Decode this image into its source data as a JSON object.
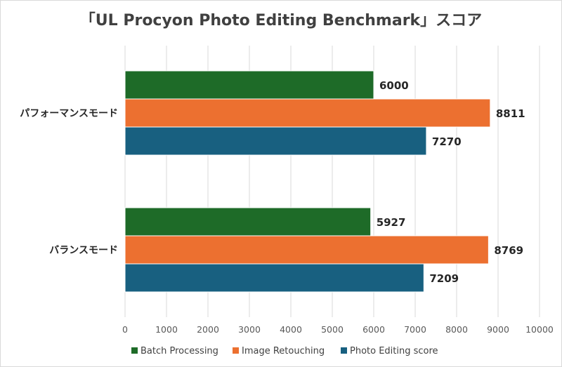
{
  "chart_data": {
    "type": "bar",
    "orientation": "horizontal",
    "title": "「UL Procyon Photo Editing Benchmark」スコア",
    "categories": [
      "パフォーマンスモード",
      "バランスモード"
    ],
    "series": [
      {
        "name": "Batch Processing",
        "values": [
          6000,
          5927
        ],
        "color": "#1e6b28"
      },
      {
        "name": "Image Retouching",
        "values": [
          8811,
          8769
        ],
        "color": "#ec7030"
      },
      {
        "name": "Photo Editing score",
        "values": [
          7270,
          7209
        ],
        "color": "#186080"
      }
    ],
    "xlim": [
      0,
      10000
    ],
    "xticks": [
      "0",
      "1000",
      "2000",
      "3000",
      "4000",
      "5000",
      "6000",
      "7000",
      "8000",
      "9000",
      "10000"
    ],
    "grid": "vertical",
    "legend_position": "bottom",
    "data_labels": true
  }
}
